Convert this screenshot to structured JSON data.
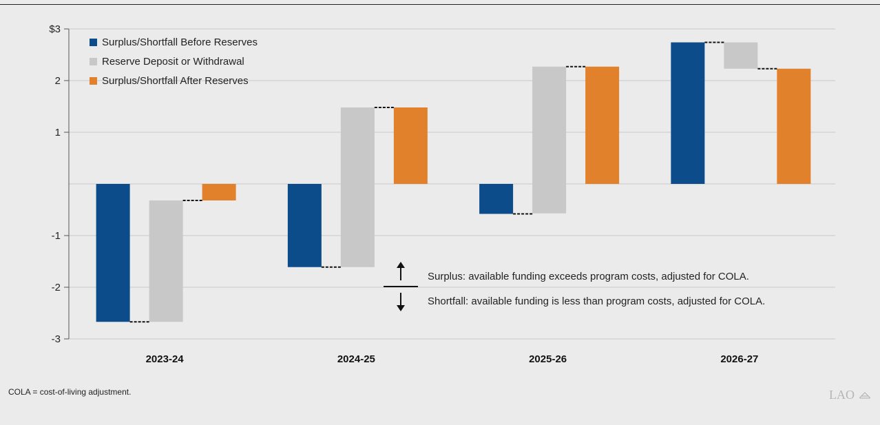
{
  "chart_data": {
    "type": "bar",
    "categories": [
      "2023-24",
      "2024-25",
      "2025-26",
      "2026-27"
    ],
    "series": [
      {
        "name": "Surplus/Shortfall Before Reserves",
        "color": "#0d4c8b",
        "bars": [
          {
            "from": 0,
            "to": -2.67
          },
          {
            "from": 0,
            "to": -1.61
          },
          {
            "from": 0,
            "to": -0.58
          },
          {
            "from": 0,
            "to": 2.74
          }
        ]
      },
      {
        "name": "Reserve Deposit or Withdrawal",
        "color": "#c8c8c8",
        "bars": [
          {
            "from": -2.67,
            "to": -0.32
          },
          {
            "from": -1.61,
            "to": 1.48
          },
          {
            "from": -0.57,
            "to": 2.27
          },
          {
            "from": 2.74,
            "to": 2.23
          }
        ]
      },
      {
        "name": "Surplus/Shortfall After Reserves",
        "color": "#e1812c",
        "bars": [
          {
            "from": 0,
            "to": -0.32
          },
          {
            "from": 0,
            "to": 1.48
          },
          {
            "from": 0,
            "to": 2.27
          },
          {
            "from": 0,
            "to": 2.23
          }
        ]
      }
    ],
    "ylim": [
      -3,
      3
    ],
    "yticks": [
      {
        "value": 3,
        "label": "$3"
      },
      {
        "value": 2,
        "label": "2"
      },
      {
        "value": 1,
        "label": "1"
      },
      {
        "value": -1,
        "label": "-1"
      },
      {
        "value": -2,
        "label": "-2"
      },
      {
        "value": -3,
        "label": "-3"
      }
    ],
    "grid": true,
    "legend": "top-left",
    "annotations": {
      "surplus": "Surplus: available funding exceeds program costs, adjusted for COLA.",
      "shortfall": "Shortfall: available funding is less than program costs, adjusted for COLA."
    }
  },
  "footnote": "COLA = cost-of-living adjustment.",
  "logo_text": "LAO"
}
